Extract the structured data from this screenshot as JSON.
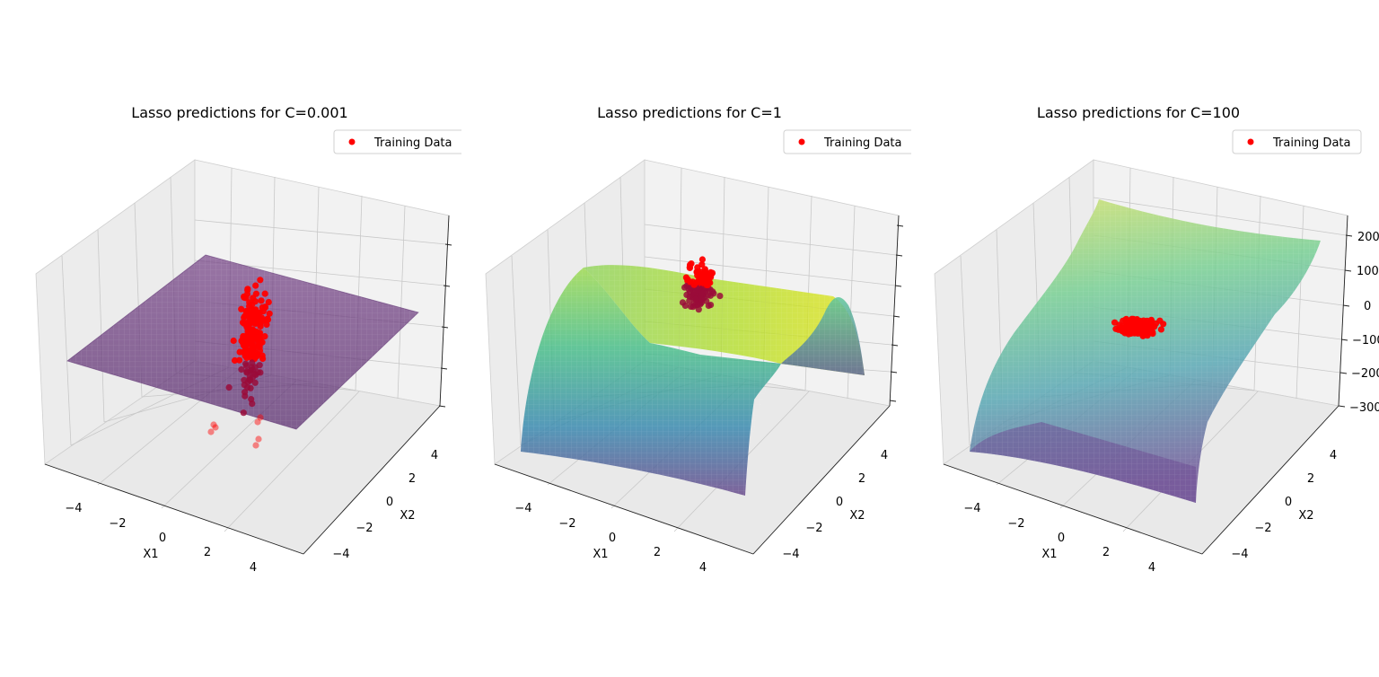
{
  "figure": {
    "colors": {
      "training_points": "#ff0000",
      "pane": "#f2f2f2",
      "grid": "#cccccc",
      "colormap": "viridis"
    }
  },
  "chart_data": [
    {
      "type": "surface3d",
      "title": "Lasso predictions for C=0.001",
      "xlabel": "X1",
      "ylabel": "X2",
      "zlabel": "",
      "xlim": [
        -5,
        5
      ],
      "ylim": [
        -5,
        5
      ],
      "x_ticks": [
        "−4",
        "−2",
        "0",
        "2",
        "4"
      ],
      "y_ticks": [
        "−4",
        "−2",
        "0",
        "2",
        "4"
      ],
      "z_ticks": [
        "",
        "",
        "",
        "",
        ""
      ],
      "legend": {
        "label": "Training Data",
        "placement": "top-right"
      },
      "surface": "nearly flat plane",
      "scatter_shape": "vertical column of points centred near the origin"
    },
    {
      "type": "surface3d",
      "title": "Lasso predictions for C=1",
      "xlabel": "X1",
      "ylabel": "X2",
      "zlabel": "",
      "xlim": [
        -5,
        5
      ],
      "ylim": [
        -5,
        5
      ],
      "x_ticks": [
        "−4",
        "−2",
        "0",
        "2",
        "4"
      ],
      "y_ticks": [
        "−4",
        "−2",
        "0",
        "2",
        "4"
      ],
      "z_ticks": [
        "",
        "",
        "",
        "",
        "",
        ""
      ],
      "legend": {
        "label": "Training Data",
        "placement": "top-right"
      },
      "surface": "downward parabolic ridge along X2",
      "scatter_shape": "cluster of points near the origin"
    },
    {
      "type": "surface3d",
      "title": "Lasso predictions for C=100",
      "xlabel": "X1",
      "ylabel": "X2",
      "zlabel": "",
      "xlim": [
        -5,
        5
      ],
      "ylim": [
        -5,
        5
      ],
      "zlim": [
        -300,
        200
      ],
      "x_ticks": [
        "−4",
        "−2",
        "0",
        "2",
        "4"
      ],
      "y_ticks": [
        "−4",
        "−2",
        "0",
        "2",
        "4"
      ],
      "z_ticks": [
        "200",
        "100",
        "0",
        "−100",
        "−200",
        "−300"
      ],
      "legend": {
        "label": "Training Data",
        "placement": "top-right"
      },
      "surface": "cubic saddle-like sheet",
      "scatter_shape": "flat cluster of points near the origin"
    }
  ]
}
